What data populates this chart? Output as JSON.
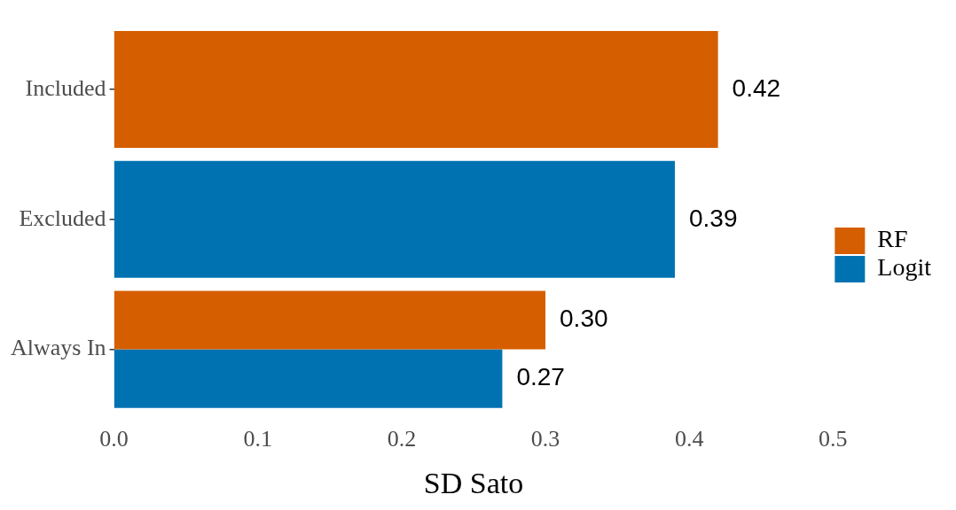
{
  "chart_data": {
    "type": "bar",
    "orientation": "horizontal",
    "categories": [
      "Included",
      "Excluded",
      "Always In"
    ],
    "xlabel": "SD Sato",
    "series": [
      {
        "name": "RF",
        "color": "#d55e00",
        "values": [
          0.42,
          null,
          0.3
        ],
        "value_labels": [
          "0.42",
          null,
          "0.30"
        ]
      },
      {
        "name": "Logit",
        "color": "#0072b2",
        "values": [
          null,
          0.39,
          0.27
        ],
        "value_labels": [
          null,
          "0.39",
          "0.27"
        ]
      }
    ],
    "xlim": [
      0,
      0.5
    ],
    "xticks": [
      {
        "value": 0,
        "label": "0.0"
      },
      0.1,
      0.2,
      0.3,
      0.4,
      0.5
    ],
    "grid": false,
    "legend": "right"
  }
}
